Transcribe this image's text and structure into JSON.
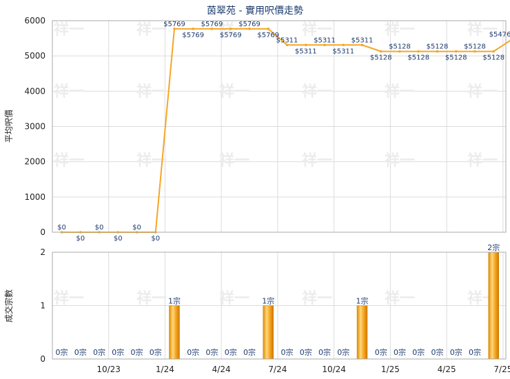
{
  "chart_data": [
    {
      "type": "line",
      "title": "茵翠苑 - 實用呎價走勢",
      "ylabel": "平均呎價",
      "xlabel": "",
      "ylim": [
        0,
        6000
      ],
      "yticks": [
        0,
        1000,
        2000,
        3000,
        4000,
        5000,
        6000
      ],
      "grid": true,
      "color": "#f5a623",
      "series": [
        {
          "name": "",
          "points": [
            {
              "x": "2023-07",
              "y": 0,
              "label": "$0"
            },
            {
              "x": "2023-08",
              "y": 0,
              "label": "$0"
            },
            {
              "x": "2023-09",
              "y": 0,
              "label": "$0"
            },
            {
              "x": "2023-10",
              "y": 0,
              "label": "$0"
            },
            {
              "x": "2023-11",
              "y": 0,
              "label": "$0"
            },
            {
              "x": "2023-12",
              "y": 0,
              "label": "$0"
            },
            {
              "x": "2024-01",
              "y": 5769,
              "label": "$5769"
            },
            {
              "x": "2024-02",
              "y": 5769,
              "label": "$5769"
            },
            {
              "x": "2024-03",
              "y": 5769,
              "label": "$5769"
            },
            {
              "x": "2024-04",
              "y": 5769,
              "label": "$5769"
            },
            {
              "x": "2024-05",
              "y": 5769,
              "label": "$5769"
            },
            {
              "x": "2024-06",
              "y": 5769,
              "label": "$5769"
            },
            {
              "x": "2024-07",
              "y": 5311,
              "label": "$5311"
            },
            {
              "x": "2024-08",
              "y": 5311,
              "label": "$5311"
            },
            {
              "x": "2024-09",
              "y": 5311,
              "label": "$5311"
            },
            {
              "x": "2024-10",
              "y": 5311,
              "label": "$5311"
            },
            {
              "x": "2024-11",
              "y": 5311,
              "label": "$5311"
            },
            {
              "x": "2024-12",
              "y": 5128,
              "label": "$5128"
            },
            {
              "x": "2025-01",
              "y": 5128,
              "label": "$5128"
            },
            {
              "x": "2025-02",
              "y": 5128,
              "label": "$5128"
            },
            {
              "x": "2025-03",
              "y": 5128,
              "label": "$5128"
            },
            {
              "x": "2025-04",
              "y": 5128,
              "label": "$5128"
            },
            {
              "x": "2025-05",
              "y": 5128,
              "label": "$5128"
            },
            {
              "x": "2025-06",
              "y": 5128,
              "label": "$5128"
            },
            {
              "x": "2025-07",
              "y": 5476,
              "label": "$5476"
            }
          ]
        }
      ]
    },
    {
      "type": "bar",
      "title": "",
      "ylabel": "成交宗數",
      "xlabel": "",
      "ylim": [
        0,
        2
      ],
      "yticks": [
        0,
        1,
        2
      ],
      "grid": true,
      "color": "#f0a020",
      "x_tick_labels": [
        {
          "x": "2023-10",
          "label": "10/23"
        },
        {
          "x": "2024-01",
          "label": "1/24"
        },
        {
          "x": "2024-04",
          "label": "4/24"
        },
        {
          "x": "2024-07",
          "label": "7/24"
        },
        {
          "x": "2024-10",
          "label": "10/24"
        },
        {
          "x": "2025-01",
          "label": "1/25"
        },
        {
          "x": "2025-04",
          "label": "4/25"
        },
        {
          "x": "2025-07",
          "label": "7/25"
        }
      ],
      "bars": [
        {
          "x": "2023-07",
          "value": 0,
          "label": "0宗"
        },
        {
          "x": "2023-08",
          "value": 0,
          "label": "0宗"
        },
        {
          "x": "2023-09",
          "value": 0,
          "label": "0宗"
        },
        {
          "x": "2023-10",
          "value": 0,
          "label": "0宗"
        },
        {
          "x": "2023-11",
          "value": 0,
          "label": "0宗"
        },
        {
          "x": "2023-12",
          "value": 0,
          "label": "0宗"
        },
        {
          "x": "2024-01",
          "value": 1,
          "label": "1宗"
        },
        {
          "x": "2024-02",
          "value": 0,
          "label": "0宗"
        },
        {
          "x": "2024-03",
          "value": 0,
          "label": "0宗"
        },
        {
          "x": "2024-04",
          "value": 0,
          "label": "0宗"
        },
        {
          "x": "2024-05",
          "value": 0,
          "label": "0宗"
        },
        {
          "x": "2024-06",
          "value": 1,
          "label": "1宗"
        },
        {
          "x": "2024-07",
          "value": 0,
          "label": "0宗"
        },
        {
          "x": "2024-08",
          "value": 0,
          "label": "0宗"
        },
        {
          "x": "2024-09",
          "value": 0,
          "label": "0宗"
        },
        {
          "x": "2024-10",
          "value": 0,
          "label": "0宗"
        },
        {
          "x": "2024-11",
          "value": 1,
          "label": "1宗"
        },
        {
          "x": "2024-12",
          "value": 0,
          "label": "0宗"
        },
        {
          "x": "2025-01",
          "value": 0,
          "label": "0宗"
        },
        {
          "x": "2025-02",
          "value": 0,
          "label": "0宗"
        },
        {
          "x": "2025-03",
          "value": 0,
          "label": "0宗"
        },
        {
          "x": "2025-04",
          "value": 0,
          "label": "0宗"
        },
        {
          "x": "2025-05",
          "value": 0,
          "label": "0宗"
        },
        {
          "x": "2025-06",
          "value": 2,
          "label": "2宗"
        }
      ]
    }
  ],
  "watermark": "祥一"
}
